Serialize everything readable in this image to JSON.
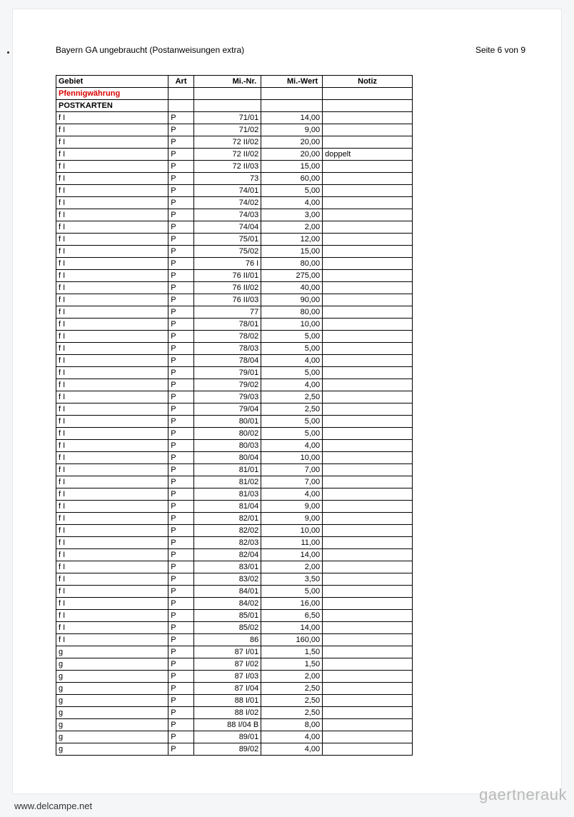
{
  "header": {
    "title": "Bayern GA ungebraucht (Postanweisungen extra)",
    "page_info": "Seite 6 von 9"
  },
  "columns": {
    "gebiet": "Gebiet",
    "art": "Art",
    "minr": "Mi.-Nr.",
    "miwert": "Mi.-Wert",
    "notiz": "Notiz"
  },
  "section1": "Pfennigwährung",
  "section2": "POSTKARTEN",
  "rows": [
    {
      "g": "f I",
      "a": "P",
      "n": "71/01",
      "w": "14,00",
      "z": ""
    },
    {
      "g": "f I",
      "a": "P",
      "n": "71/02",
      "w": "9,00",
      "z": ""
    },
    {
      "g": "f I",
      "a": "P",
      "n": "72 II/02",
      "w": "20,00",
      "z": ""
    },
    {
      "g": "f I",
      "a": "P",
      "n": "72 II/02",
      "w": "20,00",
      "z": "doppelt"
    },
    {
      "g": "f I",
      "a": "P",
      "n": "72 II/03",
      "w": "15,00",
      "z": ""
    },
    {
      "g": "f I",
      "a": "P",
      "n": "73",
      "w": "60,00",
      "z": ""
    },
    {
      "g": "f I",
      "a": "P",
      "n": "74/01",
      "w": "5,00",
      "z": ""
    },
    {
      "g": "f I",
      "a": "P",
      "n": "74/02",
      "w": "4,00",
      "z": ""
    },
    {
      "g": "f I",
      "a": "P",
      "n": "74/03",
      "w": "3,00",
      "z": ""
    },
    {
      "g": "f I",
      "a": "P",
      "n": "74/04",
      "w": "2,00",
      "z": ""
    },
    {
      "g": "f I",
      "a": "P",
      "n": "75/01",
      "w": "12,00",
      "z": ""
    },
    {
      "g": "f I",
      "a": "P",
      "n": "75/02",
      "w": "15,00",
      "z": ""
    },
    {
      "g": "f I",
      "a": "P",
      "n": "76 I",
      "w": "80,00",
      "z": ""
    },
    {
      "g": "f I",
      "a": "P",
      "n": "76 II/01",
      "w": "275,00",
      "z": ""
    },
    {
      "g": "f I",
      "a": "P",
      "n": "76 II/02",
      "w": "40,00",
      "z": ""
    },
    {
      "g": "f I",
      "a": "P",
      "n": "76 II/03",
      "w": "90,00",
      "z": ""
    },
    {
      "g": "f I",
      "a": "P",
      "n": "77",
      "w": "80,00",
      "z": ""
    },
    {
      "g": "f I",
      "a": "P",
      "n": "78/01",
      "w": "10,00",
      "z": ""
    },
    {
      "g": "f I",
      "a": "P",
      "n": "78/02",
      "w": "5,00",
      "z": ""
    },
    {
      "g": "f I",
      "a": "P",
      "n": "78/03",
      "w": "5,00",
      "z": ""
    },
    {
      "g": "f I",
      "a": "P",
      "n": "78/04",
      "w": "4,00",
      "z": ""
    },
    {
      "g": "f I",
      "a": "P",
      "n": "79/01",
      "w": "5,00",
      "z": ""
    },
    {
      "g": "f I",
      "a": "P",
      "n": "79/02",
      "w": "4,00",
      "z": ""
    },
    {
      "g": "f I",
      "a": "P",
      "n": "79/03",
      "w": "2,50",
      "z": ""
    },
    {
      "g": "f I",
      "a": "P",
      "n": "79/04",
      "w": "2,50",
      "z": ""
    },
    {
      "g": "f I",
      "a": "P",
      "n": "80/01",
      "w": "5,00",
      "z": ""
    },
    {
      "g": "f I",
      "a": "P",
      "n": "80/02",
      "w": "5,00",
      "z": ""
    },
    {
      "g": "f I",
      "a": "P",
      "n": "80/03",
      "w": "4,00",
      "z": ""
    },
    {
      "g": "f I",
      "a": "P",
      "n": "80/04",
      "w": "10,00",
      "z": ""
    },
    {
      "g": "f I",
      "a": "P",
      "n": "81/01",
      "w": "7,00",
      "z": ""
    },
    {
      "g": "f I",
      "a": "P",
      "n": "81/02",
      "w": "7,00",
      "z": ""
    },
    {
      "g": "f I",
      "a": "P",
      "n": "81/03",
      "w": "4,00",
      "z": ""
    },
    {
      "g": "f I",
      "a": "P",
      "n": "81/04",
      "w": "9,00",
      "z": ""
    },
    {
      "g": "f I",
      "a": "P",
      "n": "82/01",
      "w": "9,00",
      "z": ""
    },
    {
      "g": "f I",
      "a": "P",
      "n": "82/02",
      "w": "10,00",
      "z": ""
    },
    {
      "g": "f I",
      "a": "P",
      "n": "82/03",
      "w": "11,00",
      "z": ""
    },
    {
      "g": "f I",
      "a": "P",
      "n": "82/04",
      "w": "14,00",
      "z": ""
    },
    {
      "g": "f I",
      "a": "P",
      "n": "83/01",
      "w": "2,00",
      "z": ""
    },
    {
      "g": "f I",
      "a": "P",
      "n": "83/02",
      "w": "3,50",
      "z": ""
    },
    {
      "g": "f I",
      "a": "P",
      "n": "84/01",
      "w": "5,00",
      "z": ""
    },
    {
      "g": "f I",
      "a": "P",
      "n": "84/02",
      "w": "16,00",
      "z": ""
    },
    {
      "g": "f I",
      "a": "P",
      "n": "85/01",
      "w": "6,50",
      "z": ""
    },
    {
      "g": "f I",
      "a": "P",
      "n": "85/02",
      "w": "14,00",
      "z": ""
    },
    {
      "g": "f I",
      "a": "P",
      "n": "86",
      "w": "160,00",
      "z": ""
    },
    {
      "g": "g",
      "a": "P",
      "n": "87 I/01",
      "w": "1,50",
      "z": ""
    },
    {
      "g": "g",
      "a": "P",
      "n": "87 I/02",
      "w": "1,50",
      "z": ""
    },
    {
      "g": "g",
      "a": "P",
      "n": "87 I/03",
      "w": "2,00",
      "z": ""
    },
    {
      "g": "g",
      "a": "P",
      "n": "87 I/04",
      "w": "2,50",
      "z": ""
    },
    {
      "g": "g",
      "a": "P",
      "n": "88 I/01",
      "w": "2,50",
      "z": ""
    },
    {
      "g": "g",
      "a": "P",
      "n": "88 I/02",
      "w": "2,50",
      "z": ""
    },
    {
      "g": "g",
      "a": "P",
      "n": "88 I/04 B",
      "w": "8,00",
      "z": ""
    },
    {
      "g": "g",
      "a": "P",
      "n": "89/01",
      "w": "4,00",
      "z": ""
    },
    {
      "g": "g",
      "a": "P",
      "n": "89/02",
      "w": "4,00",
      "z": ""
    }
  ],
  "footer": {
    "left": "www.delcampe.net",
    "right": "gaertnerauk"
  }
}
